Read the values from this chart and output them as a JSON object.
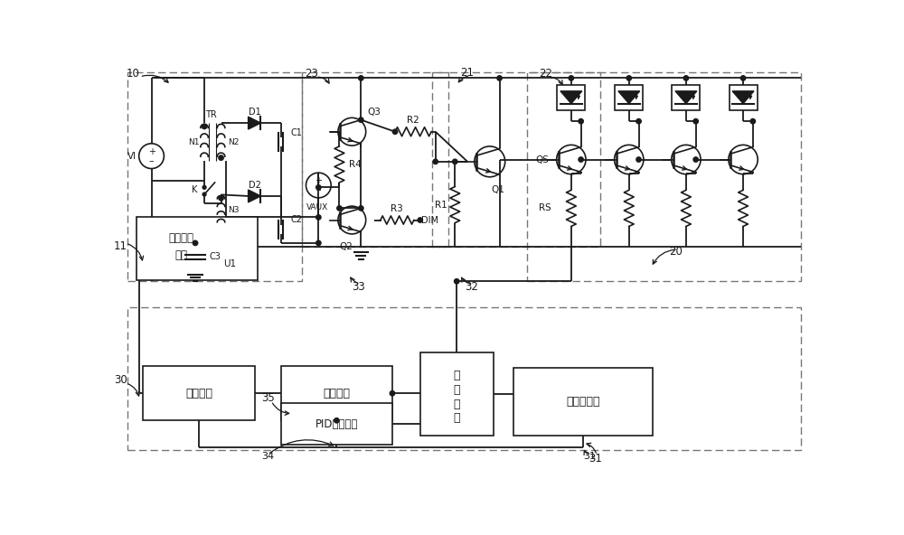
{
  "bg_color": "#ffffff",
  "line_color": "#1a1a1a",
  "dashed_color": "#777777",
  "figsize": [
    10.0,
    5.92
  ],
  "dpi": 100,
  "xlim": [
    0,
    10.0
  ],
  "ylim": [
    0,
    5.92
  ]
}
